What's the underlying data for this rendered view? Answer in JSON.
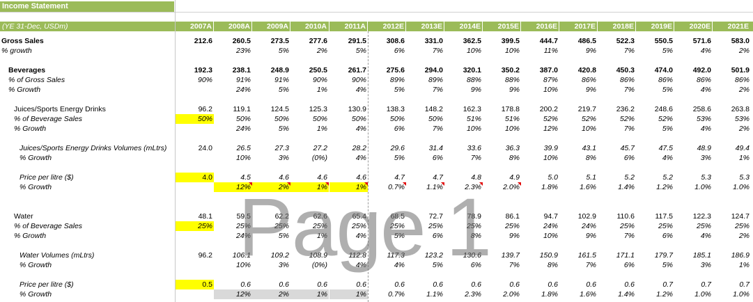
{
  "sheet_title": "Income Statement",
  "header_label": "(YE 31-Dec, USDm)",
  "years": [
    "2007A",
    "2008A",
    "2009A",
    "2010A",
    "2011A",
    "2012E",
    "2013E",
    "2014E",
    "2015E",
    "2016E",
    "2017E",
    "2018E",
    "2019E",
    "2020E",
    "2021E"
  ],
  "watermark": "Page 1",
  "rows": [
    {
      "label": "Gross Sales",
      "style": "bold",
      "indent": 0,
      "top": 52,
      "values": [
        "212.6",
        "260.5",
        "273.5",
        "277.6",
        "291.5",
        "308.6",
        "331.0",
        "362.5",
        "399.5",
        "444.7",
        "486.5",
        "522.3",
        "550.5",
        "571.6",
        "583.0"
      ]
    },
    {
      "label": "% growth",
      "style": "italic",
      "indent": 0,
      "top": 66,
      "values": [
        "",
        "23%",
        "5%",
        "2%",
        "5%",
        "6%",
        "7%",
        "10%",
        "10%",
        "11%",
        "9%",
        "7%",
        "5%",
        "4%",
        "2%"
      ]
    },
    {
      "label": "Beverages",
      "style": "bold",
      "indent": 10,
      "top": 94,
      "values": [
        "192.3",
        "238.1",
        "248.9",
        "250.5",
        "261.7",
        "275.6",
        "294.0",
        "320.1",
        "350.2",
        "387.0",
        "420.8",
        "450.3",
        "474.0",
        "492.0",
        "501.9"
      ]
    },
    {
      "label": "% of Gross Sales",
      "style": "italic",
      "indent": 10,
      "top": 108,
      "values": [
        "90%",
        "91%",
        "91%",
        "90%",
        "90%",
        "89%",
        "89%",
        "88%",
        "88%",
        "87%",
        "86%",
        "86%",
        "86%",
        "86%",
        "86%"
      ]
    },
    {
      "label": "% Growth",
      "style": "italic",
      "indent": 10,
      "top": 122,
      "values": [
        "",
        "24%",
        "5%",
        "1%",
        "4%",
        "5%",
        "7%",
        "9%",
        "9%",
        "10%",
        "9%",
        "7%",
        "5%",
        "4%",
        "2%"
      ]
    },
    {
      "label": "Juices/Sports Energy Drinks",
      "style": "normal",
      "indent": 18,
      "top": 150,
      "values": [
        "96.2",
        "119.1",
        "124.5",
        "125.3",
        "130.9",
        "138.3",
        "148.2",
        "162.3",
        "178.8",
        "200.2",
        "219.7",
        "236.2",
        "248.6",
        "258.6",
        "263.8"
      ]
    },
    {
      "label": "% of Beverage Sales",
      "style": "italic",
      "indent": 18,
      "top": 164,
      "values": [
        "50%",
        "50%",
        "50%",
        "50%",
        "50%",
        "50%",
        "50%",
        "51%",
        "51%",
        "52%",
        "52%",
        "52%",
        "52%",
        "53%",
        "53%"
      ],
      "highlight": [
        0
      ]
    },
    {
      "label": "% Growth",
      "style": "italic",
      "indent": 18,
      "top": 178,
      "values": [
        "",
        "24%",
        "5%",
        "1%",
        "4%",
        "6%",
        "7%",
        "10%",
        "10%",
        "12%",
        "10%",
        "7%",
        "5%",
        "4%",
        "2%"
      ]
    },
    {
      "label": "Juices/Sports Energy Drinks Volumes (mLtrs)",
      "style": "italic",
      "indent": 26,
      "top": 206,
      "values": [
        "24.0",
        "26.5",
        "27.3",
        "27.2",
        "28.2",
        "29.6",
        "31.4",
        "33.6",
        "36.3",
        "39.9",
        "43.1",
        "45.7",
        "47.5",
        "48.9",
        "49.4"
      ]
    },
    {
      "label": "% Growth",
      "style": "italic",
      "indent": 26,
      "top": 220,
      "values": [
        "",
        "10%",
        "3%",
        "(0%)",
        "4%",
        "5%",
        "6%",
        "7%",
        "8%",
        "10%",
        "8%",
        "6%",
        "4%",
        "3%",
        "1%"
      ]
    },
    {
      "label": "Price per litre ($)",
      "style": "italic",
      "indent": 26,
      "top": 248,
      "values": [
        "4.0",
        "4.5",
        "4.6",
        "4.6",
        "4.6",
        "4.7",
        "4.7",
        "4.8",
        "4.9",
        "5.0",
        "5.1",
        "5.2",
        "5.2",
        "5.3",
        "5.3"
      ],
      "highlight": [
        0
      ]
    },
    {
      "label": "% Growth",
      "style": "italic",
      "indent": 26,
      "top": 262,
      "values": [
        "",
        "12%",
        "2%",
        "1%",
        "1%",
        "0.7%",
        "1.1%",
        "2.3%",
        "2.0%",
        "1.8%",
        "1.6%",
        "1.4%",
        "1.2%",
        "1.0%",
        "1.0%"
      ],
      "highlight": [
        1,
        2,
        3,
        4
      ],
      "markers": [
        1,
        2,
        3,
        4,
        5,
        6,
        7,
        8
      ]
    },
    {
      "label": "Water",
      "style": "normal",
      "indent": 18,
      "top": 304,
      "values": [
        "48.1",
        "59.5",
        "62.2",
        "62.6",
        "65.4",
        "68.5",
        "72.7",
        "78.9",
        "86.1",
        "94.7",
        "102.9",
        "110.6",
        "117.5",
        "122.3",
        "124.7"
      ]
    },
    {
      "label": "% of Beverage Sales",
      "style": "italic",
      "indent": 18,
      "top": 318,
      "values": [
        "25%",
        "25%",
        "25%",
        "25%",
        "25%",
        "25%",
        "25%",
        "25%",
        "25%",
        "24%",
        "24%",
        "25%",
        "25%",
        "25%",
        "25%"
      ],
      "highlight": [
        0
      ]
    },
    {
      "label": "% Growth",
      "style": "italic",
      "indent": 18,
      "top": 332,
      "values": [
        "",
        "24%",
        "5%",
        "1%",
        "4%",
        "5%",
        "6%",
        "8%",
        "9%",
        "10%",
        "9%",
        "7%",
        "6%",
        "4%",
        "2%"
      ]
    },
    {
      "label": "Water Volumes (mLtrs)",
      "style": "italic",
      "indent": 26,
      "top": 360,
      "values": [
        "96.2",
        "106.1",
        "109.2",
        "108.9",
        "112.8",
        "117.3",
        "123.2",
        "130.6",
        "139.7",
        "150.9",
        "161.5",
        "171.1",
        "179.7",
        "185.1",
        "186.9"
      ]
    },
    {
      "label": "% Growth",
      "style": "italic",
      "indent": 26,
      "top": 374,
      "values": [
        "",
        "10%",
        "3%",
        "(0%)",
        "4%",
        "4%",
        "5%",
        "6%",
        "7%",
        "8%",
        "7%",
        "6%",
        "5%",
        "3%",
        "1%"
      ]
    },
    {
      "label": "Price per litre ($)",
      "style": "italic",
      "indent": 26,
      "top": 402,
      "values": [
        "0.5",
        "0.6",
        "0.6",
        "0.6",
        "0.6",
        "0.6",
        "0.6",
        "0.6",
        "0.6",
        "0.6",
        "0.6",
        "0.6",
        "0.7",
        "0.7",
        "0.7"
      ],
      "highlight": [
        0
      ]
    },
    {
      "label": "% Growth",
      "style": "italic",
      "indent": 26,
      "top": 416,
      "values": [
        "",
        "12%",
        "2%",
        "1%",
        "1%",
        "0.7%",
        "1.1%",
        "2.3%",
        "2.0%",
        "1.8%",
        "1.6%",
        "1.4%",
        "1.2%",
        "1.0%",
        "1.0%"
      ],
      "gray": [
        1,
        2,
        3,
        4
      ]
    }
  ]
}
